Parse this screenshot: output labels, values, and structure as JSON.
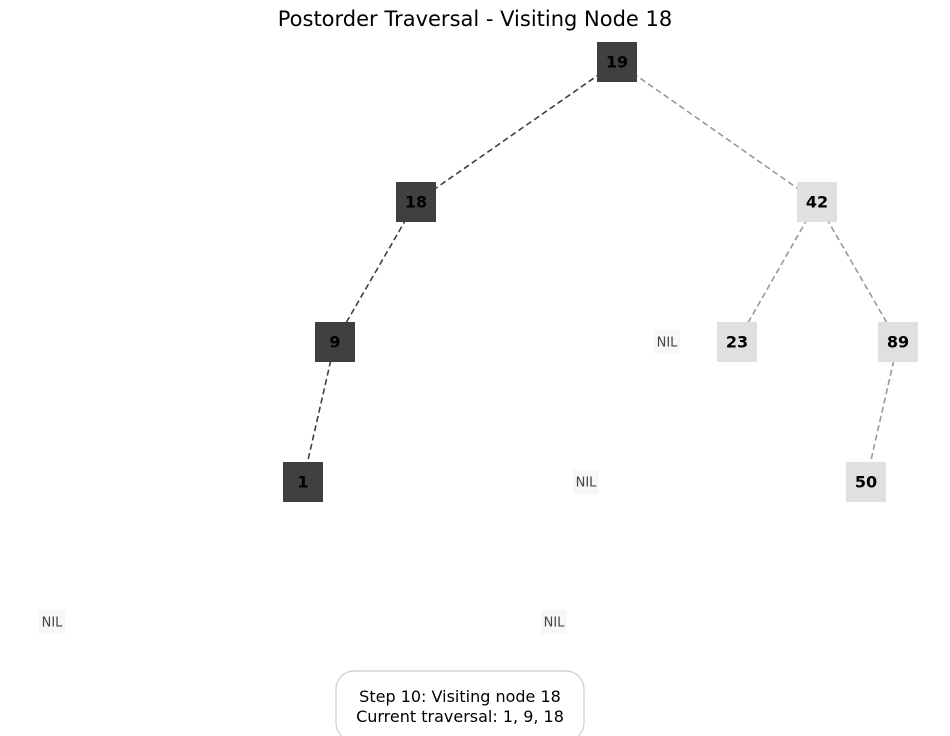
{
  "title": "Postorder Traversal - Visiting Node 18",
  "colors": {
    "visited": "#404040",
    "unvisited": "#e0e0e0",
    "nil": "#f7f7f7",
    "edge_visited": "#404040",
    "edge_unvisited": "#999999",
    "info_border": "#cccccc"
  },
  "nodes": [
    {
      "id": "n19",
      "label": "19",
      "state": "visited"
    },
    {
      "id": "n18",
      "label": "18",
      "state": "visited"
    },
    {
      "id": "n42",
      "label": "42",
      "state": "unvisited"
    },
    {
      "id": "n9",
      "label": "9",
      "state": "visited"
    },
    {
      "id": "n23",
      "label": "23",
      "state": "unvisited"
    },
    {
      "id": "n89",
      "label": "89",
      "state": "unvisited"
    },
    {
      "id": "n1",
      "label": "1",
      "state": "visited"
    },
    {
      "id": "n50",
      "label": "50",
      "state": "unvisited"
    }
  ],
  "nil_nodes": [
    {
      "id": "nil1",
      "label": "NIL"
    },
    {
      "id": "nil2",
      "label": "NIL"
    },
    {
      "id": "nil3",
      "label": "NIL"
    },
    {
      "id": "nil4",
      "label": "NIL"
    }
  ],
  "edges": [
    {
      "from": "n19",
      "to": "n18",
      "state": "visited"
    },
    {
      "from": "n19",
      "to": "n42",
      "state": "unvisited"
    },
    {
      "from": "n18",
      "to": "n9",
      "state": "visited"
    },
    {
      "from": "n9",
      "to": "n1",
      "state": "visited"
    },
    {
      "from": "n42",
      "to": "n23",
      "state": "unvisited"
    },
    {
      "from": "n42",
      "to": "n89",
      "state": "unvisited"
    },
    {
      "from": "n89",
      "to": "n50",
      "state": "unvisited"
    }
  ],
  "info": {
    "line1": "Step 10: Visiting node 18",
    "line2": "Current traversal: 1, 9, 18"
  }
}
